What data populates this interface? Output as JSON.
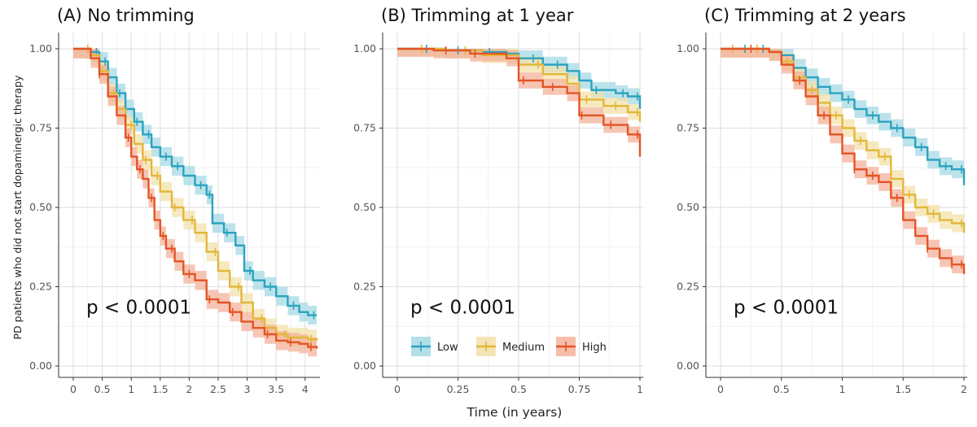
{
  "chart_data": [
    {
      "type": "line",
      "title": "(A) No trimming",
      "xlabel": "Time (in years)",
      "ylabel": "PD patients who did not start dopaminergic therapy",
      "xlim": [
        0,
        4.2
      ],
      "ylim": [
        0,
        1
      ],
      "xticks": [
        0,
        0.5,
        1,
        1.5,
        2,
        2.5,
        3,
        3.5,
        4
      ],
      "xtick_labels": [
        "0",
        "0.5",
        "1",
        "1.5",
        "2",
        "2.5",
        "3",
        "3.5",
        "4"
      ],
      "yticks": [
        0,
        0.25,
        0.5,
        0.75,
        1
      ],
      "ytick_labels": [
        "0.00",
        "0.25",
        "0.50",
        "0.75",
        "1.00"
      ],
      "annotation": "p < 0.0001",
      "series": [
        {
          "name": "Low",
          "band": 0.03,
          "x": [
            0,
            0.15,
            0.3,
            0.45,
            0.6,
            0.75,
            0.9,
            1.05,
            1.2,
            1.35,
            1.5,
            1.7,
            1.9,
            2.1,
            2.3,
            2.4,
            2.6,
            2.8,
            2.95,
            3.1,
            3.3,
            3.5,
            3.7,
            3.9,
            4.05,
            4.2
          ],
          "y": [
            1,
            1,
            0.99,
            0.96,
            0.91,
            0.86,
            0.81,
            0.77,
            0.73,
            0.69,
            0.66,
            0.63,
            0.6,
            0.57,
            0.54,
            0.45,
            0.42,
            0.38,
            0.3,
            0.27,
            0.25,
            0.22,
            0.19,
            0.17,
            0.16,
            0.16
          ],
          "censors": [
            0.3,
            0.4,
            0.55,
            0.8,
            1.1,
            1.3,
            1.6,
            1.8,
            2.2,
            2.35,
            2.65,
            3.05,
            3.4,
            3.8,
            4.15
          ]
        },
        {
          "name": "Medium",
          "band": 0.03,
          "x": [
            0,
            0.15,
            0.3,
            0.45,
            0.6,
            0.75,
            0.9,
            1.05,
            1.2,
            1.35,
            1.5,
            1.7,
            1.9,
            2.1,
            2.3,
            2.5,
            2.7,
            2.9,
            3.1,
            3.3,
            3.5,
            3.7,
            3.9,
            4.05,
            4.2
          ],
          "y": [
            1,
            1,
            0.98,
            0.93,
            0.86,
            0.81,
            0.76,
            0.7,
            0.65,
            0.6,
            0.55,
            0.5,
            0.46,
            0.42,
            0.36,
            0.3,
            0.25,
            0.2,
            0.15,
            0.12,
            0.1,
            0.09,
            0.09,
            0.085,
            0.08
          ],
          "censors": [
            0.25,
            0.5,
            0.7,
            1.0,
            1.25,
            1.45,
            1.75,
            2.05,
            2.45,
            2.85,
            3.25,
            3.65,
            4.1
          ]
        },
        {
          "name": "High",
          "band": 0.03,
          "x": [
            0,
            0.15,
            0.3,
            0.45,
            0.6,
            0.75,
            0.9,
            1.0,
            1.1,
            1.2,
            1.3,
            1.4,
            1.5,
            1.6,
            1.75,
            1.9,
            2.1,
            2.3,
            2.5,
            2.7,
            2.9,
            3.1,
            3.3,
            3.5,
            3.7,
            3.9,
            4.05,
            4.2
          ],
          "y": [
            1,
            1,
            0.97,
            0.92,
            0.85,
            0.79,
            0.72,
            0.66,
            0.62,
            0.59,
            0.53,
            0.46,
            0.41,
            0.37,
            0.33,
            0.29,
            0.27,
            0.21,
            0.2,
            0.17,
            0.14,
            0.12,
            0.1,
            0.08,
            0.075,
            0.07,
            0.06,
            0.055
          ],
          "censors": [
            0.45,
            0.95,
            1.15,
            1.35,
            1.55,
            1.7,
            2.0,
            2.35,
            2.75,
            3.35,
            3.75,
            4.1
          ]
        }
      ]
    },
    {
      "type": "line",
      "title": "(B) Trimming at 1 year",
      "xlabel": "Time (in years)",
      "xlim": [
        0,
        1
      ],
      "ylim": [
        0,
        1
      ],
      "xticks": [
        0,
        0.25,
        0.5,
        0.75,
        1
      ],
      "xtick_labels": [
        "0",
        "0.25",
        "0.5",
        "0.75",
        "1"
      ],
      "yticks": [
        0,
        0.25,
        0.5,
        0.75,
        1
      ],
      "ytick_labels": [
        "0.00",
        "0.25",
        "0.50",
        "0.75",
        "1.00"
      ],
      "annotation": "p < 0.0001",
      "series": [
        {
          "name": "Low",
          "band": 0.025,
          "x": [
            0,
            0.2,
            0.35,
            0.45,
            0.5,
            0.6,
            0.7,
            0.75,
            0.8,
            0.9,
            0.95,
            1.0
          ],
          "y": [
            1,
            0.995,
            0.99,
            0.985,
            0.97,
            0.95,
            0.93,
            0.9,
            0.87,
            0.86,
            0.85,
            0.81
          ],
          "censors": [
            0.12,
            0.25,
            0.38,
            0.56,
            0.66,
            0.82,
            0.93,
            0.99
          ]
        },
        {
          "name": "Medium",
          "band": 0.025,
          "x": [
            0,
            0.2,
            0.35,
            0.5,
            0.6,
            0.7,
            0.75,
            0.85,
            0.95,
            1.0
          ],
          "y": [
            1,
            0.995,
            0.98,
            0.95,
            0.92,
            0.89,
            0.84,
            0.82,
            0.8,
            0.77
          ],
          "censors": [
            0.1,
            0.28,
            0.58,
            0.78,
            0.9,
            0.99
          ]
        },
        {
          "name": "High",
          "band": 0.025,
          "x": [
            0,
            0.15,
            0.3,
            0.45,
            0.5,
            0.6,
            0.7,
            0.75,
            0.85,
            0.95,
            1.0
          ],
          "y": [
            1,
            0.995,
            0.985,
            0.97,
            0.9,
            0.88,
            0.86,
            0.79,
            0.76,
            0.73,
            0.66
          ],
          "censors": [
            0.2,
            0.32,
            0.52,
            0.64,
            0.76,
            0.88,
            0.99
          ]
        }
      ],
      "legend": [
        "Low",
        "Medium",
        "High"
      ]
    },
    {
      "type": "line",
      "title": "(C) Trimming at 2 years",
      "xlabel": "Time (in years)",
      "xlim": [
        0,
        2
      ],
      "ylim": [
        0,
        1
      ],
      "xticks": [
        0,
        0.5,
        1,
        1.5,
        2
      ],
      "xtick_labels": [
        "0",
        "0.5",
        "1",
        "1.5",
        "2"
      ],
      "yticks": [
        0,
        0.25,
        0.5,
        0.75,
        1
      ],
      "ytick_labels": [
        "0.00",
        "0.25",
        "0.50",
        "0.75",
        "1.00"
      ],
      "annotation": "p < 0.0001",
      "series": [
        {
          "name": "Low",
          "band": 0.028,
          "x": [
            0,
            0.2,
            0.4,
            0.5,
            0.6,
            0.7,
            0.8,
            0.9,
            1.0,
            1.1,
            1.2,
            1.3,
            1.4,
            1.5,
            1.6,
            1.7,
            1.8,
            1.9,
            2.0
          ],
          "y": [
            1,
            1,
            0.99,
            0.98,
            0.94,
            0.91,
            0.88,
            0.86,
            0.84,
            0.81,
            0.79,
            0.77,
            0.75,
            0.72,
            0.69,
            0.65,
            0.63,
            0.62,
            0.57
          ],
          "censors": [
            0.2,
            0.35,
            0.6,
            0.8,
            1.05,
            1.25,
            1.45,
            1.65,
            1.85,
            1.98
          ]
        },
        {
          "name": "Medium",
          "band": 0.028,
          "x": [
            0,
            0.2,
            0.4,
            0.5,
            0.6,
            0.7,
            0.8,
            0.9,
            1.0,
            1.1,
            1.2,
            1.3,
            1.4,
            1.5,
            1.6,
            1.7,
            1.8,
            1.9,
            2.0
          ],
          "y": [
            1,
            1,
            0.99,
            0.96,
            0.91,
            0.87,
            0.83,
            0.79,
            0.75,
            0.71,
            0.68,
            0.66,
            0.59,
            0.54,
            0.5,
            0.48,
            0.46,
            0.45,
            0.42
          ],
          "censors": [
            0.1,
            0.3,
            0.55,
            0.75,
            0.95,
            1.15,
            1.35,
            1.55,
            1.75,
            1.98
          ]
        },
        {
          "name": "High",
          "band": 0.028,
          "x": [
            0,
            0.2,
            0.4,
            0.5,
            0.6,
            0.7,
            0.8,
            0.9,
            1.0,
            1.1,
            1.2,
            1.3,
            1.4,
            1.5,
            1.6,
            1.7,
            1.8,
            1.9,
            2.0
          ],
          "y": [
            1,
            1,
            0.99,
            0.95,
            0.9,
            0.85,
            0.79,
            0.73,
            0.67,
            0.62,
            0.6,
            0.58,
            0.53,
            0.46,
            0.41,
            0.37,
            0.34,
            0.32,
            0.29
          ],
          "censors": [
            0.25,
            0.65,
            0.85,
            1.1,
            1.25,
            1.45,
            1.7,
            1.9,
            1.98
          ]
        }
      ]
    }
  ],
  "colors": {
    "Low": "#2BA3BF",
    "Medium": "#E2B73A",
    "High": "#E45426"
  },
  "band_colors": {
    "Low": "#A6D9E4",
    "Medium": "#F3E1A9",
    "High": "#F4B29B"
  }
}
